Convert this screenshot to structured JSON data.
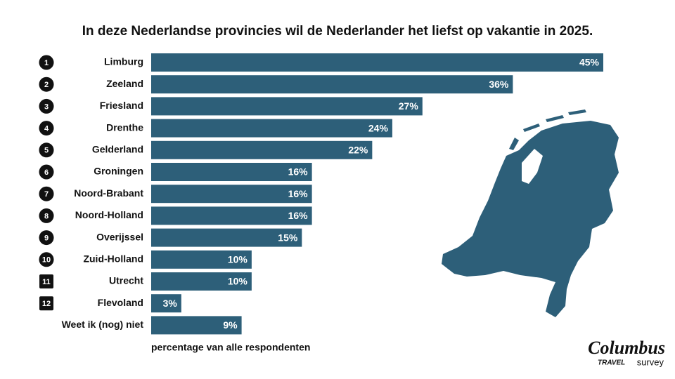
{
  "chart_data": {
    "type": "bar",
    "orientation": "horizontal",
    "title": "In deze Nederlandse provincies wil de Nederlander het liefst op vakantie in 2025.",
    "categories": [
      "Limburg",
      "Zeeland",
      "Friesland",
      "Drenthe",
      "Gelderland",
      "Groningen",
      "Noord-Brabant",
      "Noord-Holland",
      "Overijssel",
      "Zuid-Holland",
      "Utrecht",
      "Flevoland",
      "Weet ik (nog) niet"
    ],
    "ranks": [
      1,
      2,
      3,
      4,
      5,
      6,
      7,
      8,
      9,
      10,
      11,
      12,
      null
    ],
    "rank_badge": [
      "circle",
      "circle",
      "circle",
      "circle",
      "circle",
      "circle",
      "circle",
      "circle",
      "circle",
      "circle",
      "square",
      "square",
      null
    ],
    "values": [
      45,
      36,
      27,
      24,
      22,
      16,
      16,
      16,
      15,
      10,
      10,
      3,
      9
    ],
    "value_labels": [
      "45%",
      "36%",
      "27%",
      "24%",
      "22%",
      "16%",
      "16%",
      "16%",
      "15%",
      "10%",
      "10%",
      "3%",
      "9%"
    ],
    "color": "#2d5f79",
    "xlabel": "percentage van alle respondenten"
  },
  "logo": {
    "name": "Columbus",
    "line1": "TRAVEL",
    "line2": "survey"
  }
}
